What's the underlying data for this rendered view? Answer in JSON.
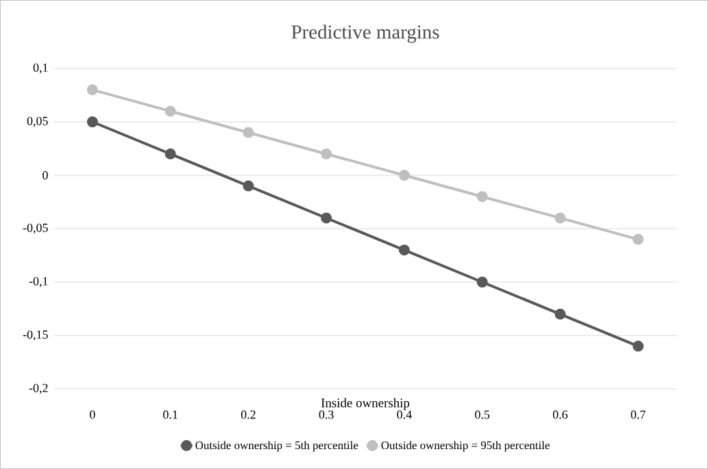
{
  "chart_data": {
    "type": "line",
    "title": "Predictive margins",
    "xlabel": "Inside ownership",
    "categories": [
      "0",
      "0.1",
      "0.2",
      "0.3",
      "0.4",
      "0.5",
      "0.6",
      "0.7"
    ],
    "series": [
      {
        "name": "Outside ownership = 5th percentile",
        "color": "#595959",
        "values": [
          0.05,
          0.02,
          -0.01,
          -0.04,
          -0.07,
          -0.1,
          -0.13,
          -0.16
        ]
      },
      {
        "name": "Outside ownership = 95th percentile",
        "color": "#bfbfbf",
        "values": [
          0.08,
          0.06,
          0.04,
          0.02,
          0,
          -0.02,
          -0.04,
          -0.06
        ]
      }
    ],
    "ylim": [
      -0.2,
      0.1
    ],
    "yticks": [
      {
        "value": -0.2,
        "label": "-0,2"
      },
      {
        "value": -0.15,
        "label": "-0,15"
      },
      {
        "value": -0.1,
        "label": "-0,1"
      },
      {
        "value": -0.05,
        "label": "-0,05"
      },
      {
        "value": 0,
        "label": "0"
      },
      {
        "value": 0.05,
        "label": "0,05"
      },
      {
        "value": 0.1,
        "label": "0,1"
      }
    ],
    "grid": "y",
    "legend": "bottom",
    "marker": "circle",
    "line_style": "solid"
  }
}
